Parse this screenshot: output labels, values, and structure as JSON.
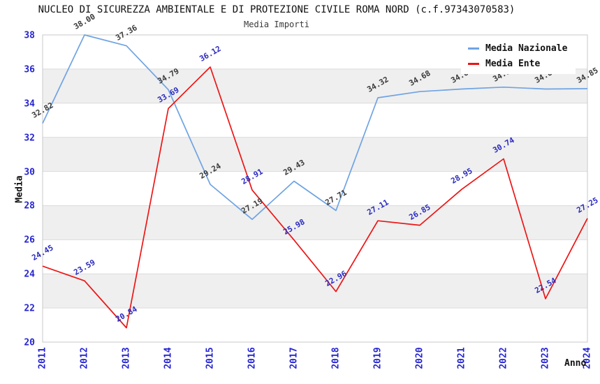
{
  "chart_data": {
    "type": "line",
    "title": "NUCLEO DI SICUREZZA AMBIENTALE E DI PROTEZIONE CIVILE ROMA NORD (c.f.97343070583)",
    "subtitle": "Media Importi",
    "xlabel": "Anno",
    "ylabel": "Media",
    "x": [
      "2011",
      "2012",
      "2013",
      "2014",
      "2015",
      "2016",
      "2017",
      "2018",
      "2019",
      "2020",
      "2021",
      "2022",
      "2023",
      "2024"
    ],
    "series": [
      {
        "name": "Media Nazionale",
        "color": "#6fa3e3",
        "label_color": "#3a3a3a",
        "values": [
          32.82,
          38.0,
          37.36,
          34.79,
          29.24,
          27.19,
          29.43,
          27.71,
          34.32,
          34.68,
          34.83,
          34.94,
          34.83,
          34.85
        ]
      },
      {
        "name": "Media Ente",
        "color": "#ed1515",
        "label_color": "#2a2ac0",
        "values": [
          24.45,
          23.59,
          20.84,
          33.69,
          36.12,
          28.91,
          25.98,
          22.96,
          27.11,
          26.85,
          28.95,
          30.74,
          22.54,
          27.25
        ]
      }
    ],
    "ylim": [
      20,
      38
    ],
    "y_tick_step": 2,
    "grid": "horizontal",
    "value_label_rotation_deg": -30,
    "legend_position": "top-right",
    "colors": {
      "band_fill": "#efefef",
      "gridline": "#dcdcdc",
      "plot_border": "#c9c9c9",
      "tick_label": "#2525d0"
    }
  }
}
